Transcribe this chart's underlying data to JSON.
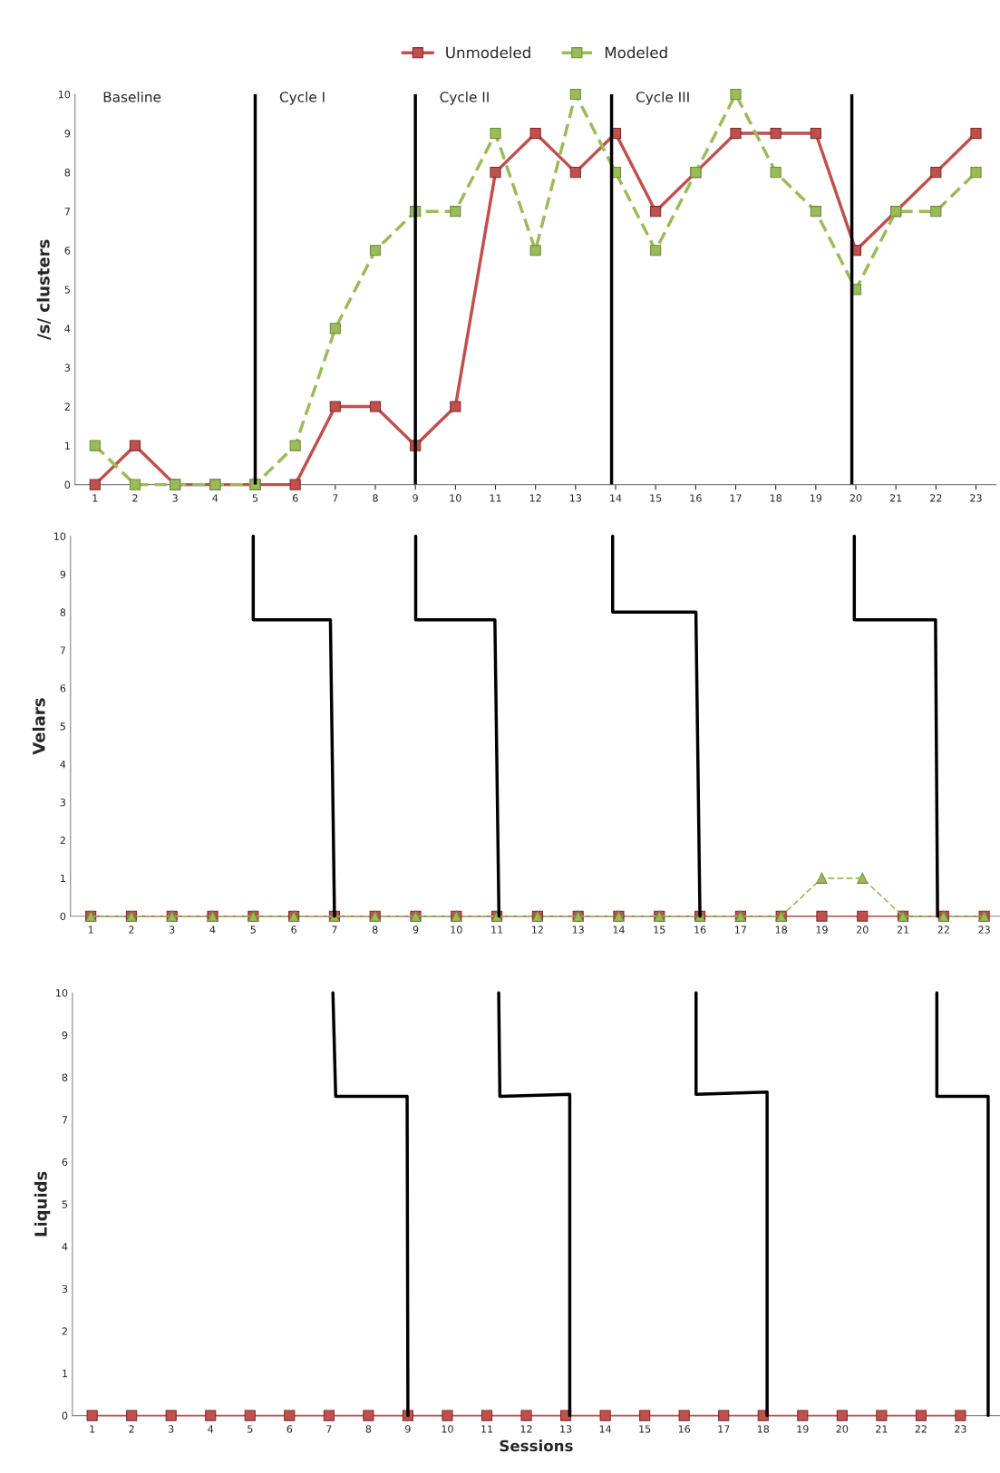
{
  "chart_data": [
    {
      "type": "line",
      "ylabel": "/s/ clusters",
      "xlim": [
        0.5,
        23.5
      ],
      "ylim": [
        0,
        10
      ],
      "xticks": [
        1,
        2,
        3,
        4,
        5,
        6,
        7,
        8,
        9,
        10,
        11,
        12,
        13,
        14,
        15,
        16,
        17,
        18,
        19,
        20,
        21,
        22,
        23
      ],
      "yticks": [
        0,
        1,
        2,
        3,
        4,
        5,
        6,
        7,
        8,
        9,
        10
      ],
      "legend": "top",
      "grid": false,
      "annotations": [
        "Baseline"
      ],
      "ref_lines": [
        {
          "axis": "x",
          "value": 5,
          "label": "Cycle I",
          "color": "#000000"
        },
        {
          "axis": "x",
          "value": 9,
          "label": "Cycle II",
          "color": "#000000"
        },
        {
          "axis": "x",
          "value": 13.9,
          "label": "Cycle III",
          "color": "#000000"
        },
        {
          "axis": "x",
          "value": 19.9,
          "label": null,
          "color": "#000000"
        }
      ],
      "series": [
        {
          "name": "Unmodeled",
          "color": "#c0504d",
          "marker": "square",
          "line_style": "solid",
          "x": [
            1,
            2,
            3,
            4,
            5,
            6,
            7,
            8,
            9,
            10,
            11,
            12,
            13,
            14,
            15,
            16,
            17,
            18,
            19,
            20,
            21,
            22,
            23
          ],
          "values": [
            0,
            1,
            0,
            0,
            0,
            0,
            2,
            2,
            1,
            2,
            8,
            9,
            8,
            9,
            7,
            8,
            9,
            9,
            9,
            6,
            7,
            8,
            9
          ]
        },
        {
          "name": "Modeled",
          "color": "#9bbb59",
          "marker": "square",
          "line_style": "dashed",
          "x": [
            1,
            2,
            3,
            4,
            5,
            6,
            7,
            8,
            9,
            10,
            11,
            12,
            13,
            14,
            15,
            16,
            17,
            18,
            19,
            20,
            21,
            22,
            23
          ],
          "values": [
            1,
            0,
            0,
            0,
            0,
            1,
            4,
            6,
            7,
            7,
            9,
            6,
            10,
            8,
            6,
            8,
            10,
            8,
            7,
            5,
            7,
            7,
            8
          ]
        }
      ]
    },
    {
      "type": "line",
      "ylabel": "Velars",
      "xlim": [
        0.5,
        23.4
      ],
      "ylim": [
        0,
        10
      ],
      "xticks": [
        1,
        2,
        3,
        4,
        5,
        6,
        7,
        8,
        9,
        10,
        11,
        12,
        13,
        14,
        15,
        16,
        17,
        18,
        19,
        20,
        21,
        22,
        23
      ],
      "yticks": [
        0,
        1,
        2,
        3,
        4,
        5,
        6,
        7,
        8,
        9,
        10
      ],
      "grid": false,
      "series": [
        {
          "color": "#c0504d",
          "marker": "square",
          "line_style": "solid",
          "x": [
            1,
            2,
            3,
            4,
            5,
            6,
            7,
            8,
            9,
            10,
            11,
            12,
            13,
            14,
            15,
            16,
            17,
            18,
            19,
            20,
            21,
            22,
            23
          ],
          "values": [
            0,
            0,
            0,
            0,
            0,
            0,
            0,
            0,
            0,
            0,
            0,
            0,
            0,
            0,
            0,
            0,
            0,
            0,
            0,
            0,
            0,
            0,
            0
          ]
        },
        {
          "color": "#9bbb59",
          "marker": "triangle",
          "line_style": "dashed",
          "x": [
            1,
            2,
            3,
            4,
            5,
            6,
            7,
            8,
            9,
            10,
            11,
            12,
            13,
            14,
            15,
            16,
            17,
            18,
            19,
            20,
            21,
            22,
            23
          ],
          "values": [
            0,
            0,
            0,
            0,
            0,
            0,
            0,
            0,
            0,
            0,
            0,
            0,
            0,
            0,
            0,
            0,
            0,
            0,
            1,
            1,
            0,
            0,
            0
          ]
        },
        {
          "color": "#000000",
          "marker": "none",
          "line_style": "solid",
          "x": [
            5,
            5,
            6.9,
            7
          ],
          "values": [
            10,
            7.8,
            7.8,
            0
          ]
        },
        {
          "color": "#000000",
          "marker": "none",
          "line_style": "solid",
          "x": [
            9,
            9,
            10.95,
            11.05
          ],
          "values": [
            10,
            7.8,
            7.8,
            0
          ]
        },
        {
          "color": "#000000",
          "marker": "none",
          "line_style": "solid",
          "x": [
            13.85,
            13.85,
            15.9,
            16
          ],
          "values": [
            10,
            8,
            8,
            0
          ]
        },
        {
          "color": "#000000",
          "marker": "none",
          "line_style": "solid",
          "x": [
            19.8,
            19.8,
            21.8,
            21.85
          ],
          "values": [
            10,
            7.8,
            7.8,
            0
          ]
        }
      ]
    },
    {
      "type": "line",
      "ylabel": "Liquids",
      "xlabel": "Sessions",
      "xlim": [
        0.5,
        24
      ],
      "ylim": [
        0,
        10
      ],
      "xticks": [
        1,
        2,
        3,
        4,
        5,
        6,
        7,
        8,
        9,
        10,
        11,
        12,
        13,
        14,
        15,
        16,
        17,
        18,
        19,
        20,
        21,
        22,
        23
      ],
      "yticks": [
        0,
        1,
        2,
        3,
        4,
        5,
        6,
        7,
        8,
        9,
        10
      ],
      "grid": false,
      "series": [
        {
          "color": "#c0504d",
          "marker": "square",
          "line_style": "solid",
          "x": [
            1,
            2,
            3,
            4,
            5,
            6,
            7,
            8,
            9,
            10,
            11,
            12,
            13,
            14,
            15,
            16,
            17,
            18,
            19,
            20,
            21,
            22,
            23
          ],
          "values": [
            0,
            0,
            0,
            0,
            0,
            0,
            0,
            0,
            0,
            0,
            0,
            0,
            0,
            0,
            0,
            0,
            0,
            0,
            0,
            0,
            0,
            0,
            0
          ]
        },
        {
          "color": "#000000",
          "marker": "none",
          "line_style": "solid",
          "x": [
            7.1,
            7.17,
            8.98,
            9
          ],
          "values": [
            10,
            7.55,
            7.55,
            0
          ]
        },
        {
          "color": "#000000",
          "marker": "none",
          "line_style": "solid",
          "x": [
            11.3,
            11.33,
            13.1,
            13.1
          ],
          "values": [
            10,
            7.55,
            7.6,
            0
          ]
        },
        {
          "color": "#000000",
          "marker": "none",
          "line_style": "solid",
          "x": [
            16.3,
            16.3,
            18.1,
            18.1
          ],
          "values": [
            10,
            7.6,
            7.65,
            0
          ]
        },
        {
          "color": "#000000",
          "marker": "none",
          "line_style": "solid",
          "x": [
            22.4,
            22.4,
            23.7,
            23.7
          ],
          "values": [
            10,
            7.55,
            7.55,
            0
          ]
        }
      ]
    }
  ]
}
